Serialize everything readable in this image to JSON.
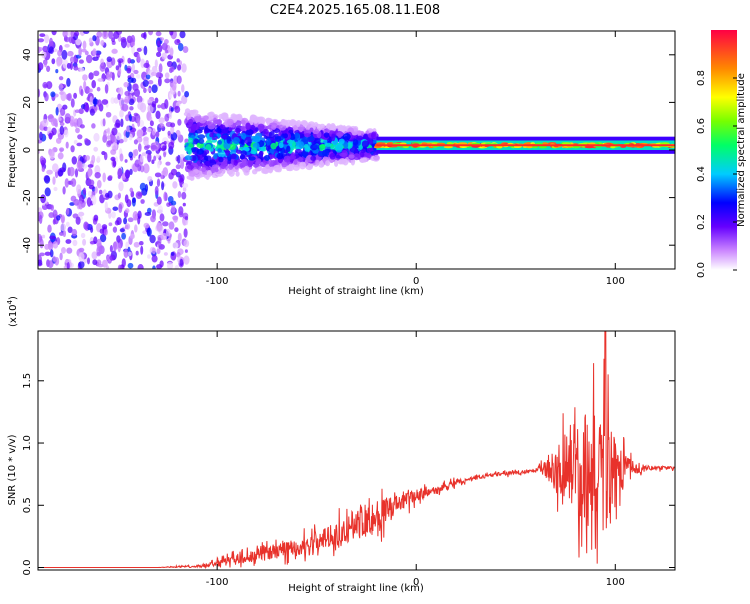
{
  "title": "C2E4.2025.165.08.11.E08",
  "colors": {
    "signal": "#e8322b",
    "spectro_band": "#ff2a2a"
  },
  "chart_data": [
    {
      "type": "heatmap",
      "xlabel": "Height of straight line (km)",
      "ylabel": "Frequency (Hz)",
      "xlim": [
        -190,
        130
      ],
      "ylim": [
        -50,
        50
      ],
      "xticks": [
        "-100",
        "0",
        "100"
      ],
      "xtick_values": [
        -100,
        0,
        100
      ],
      "yticks": [
        "-40",
        "-20",
        "0",
        "20",
        "40"
      ],
      "ytick_values": [
        -40,
        -20,
        0,
        20,
        40
      ],
      "band_center_hz": 2,
      "regions": [
        {
          "name": "noise",
          "x": [
            -190,
            -115
          ],
          "level": 0.25
        },
        {
          "name": "wide",
          "x": [
            -115,
            -20
          ],
          "halfwidth_hz": [
            12,
            5
          ],
          "level": 0.45
        },
        {
          "name": "narrow",
          "x": [
            -20,
            130
          ],
          "halfwidth_hz": [
            2,
            2
          ],
          "level": 0.95
        }
      ],
      "colorbar": {
        "label": "Normalized spectral amplitude",
        "ticks": [
          "0.0",
          "0.2",
          "0.4",
          "0.6",
          "0.8"
        ],
        "tick_values": [
          0,
          0.2,
          0.4,
          0.6,
          0.8
        ],
        "range": [
          0,
          1
        ]
      }
    },
    {
      "type": "line",
      "xlabel": "Height of straight line (km)",
      "ylabel": "SNR (10 * v/v)",
      "multiplier": "(x10",
      "multiplier_exp": "4",
      "multiplier_close": ")",
      "xlim": [
        -190,
        130
      ],
      "ylim": [
        -0.02,
        1.9
      ],
      "xticks": [
        "-100",
        "0",
        "100"
      ],
      "xtick_values": [
        -100,
        0,
        100
      ],
      "yticks": [
        "0.0",
        "0.5",
        "1.0",
        "1.5"
      ],
      "ytick_values": [
        0,
        0.5,
        1.0,
        1.5
      ],
      "series": [
        {
          "x": [
            -190,
            -130,
            -110,
            -100,
            -90,
            -80,
            -70,
            -60,
            -50,
            -40,
            -30,
            -25,
            -20,
            -10,
            0,
            10,
            20,
            30,
            40,
            50,
            60,
            70,
            75,
            80,
            85,
            90,
            95,
            100,
            105,
            110,
            115,
            120,
            130
          ],
          "values": [
            0.0,
            0.0,
            0.01,
            0.03,
            0.07,
            0.1,
            0.13,
            0.16,
            0.2,
            0.28,
            0.35,
            0.4,
            0.4,
            0.5,
            0.58,
            0.62,
            0.68,
            0.72,
            0.75,
            0.76,
            0.78,
            0.8,
            0.82,
            0.8,
            0.78,
            0.75,
            0.72,
            0.7,
            0.8,
            0.8,
            0.8,
            0.8,
            0.8
          ],
          "noise": [
            0,
            0,
            0.02,
            0.05,
            0.08,
            0.1,
            0.12,
            0.14,
            0.16,
            0.2,
            0.25,
            0.3,
            0.3,
            0.15,
            0.1,
            0.06,
            0.05,
            0.03,
            0.03,
            0.03,
            0.03,
            0.3,
            0.6,
            0.8,
            0.9,
            1.0,
            1.0,
            0.8,
            0.2,
            0.1,
            0.05,
            0.03,
            0.03
          ],
          "peak": {
            "x": 95,
            "value": 1.93
          }
        }
      ]
    }
  ]
}
